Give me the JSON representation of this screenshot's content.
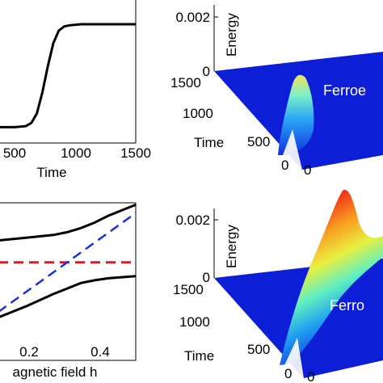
{
  "panels": {
    "top_left": {
      "xlabel": "Time",
      "xticks": [
        "500",
        "1000",
        "1500"
      ]
    },
    "top_right": {
      "zlabel": "Energy",
      "zticks": [
        "0.002",
        "0"
      ],
      "time_label": "Time",
      "time_ticks": [
        "1500",
        "1000",
        "500",
        "0"
      ],
      "side_tick": "0",
      "phase_label": "Ferroe"
    },
    "bottom_left": {
      "xlabel": "agnetic field   h",
      "xticks": [
        "0.2",
        "0.4"
      ]
    },
    "bottom_right": {
      "zlabel": "Energy",
      "zticks": [
        "0.002",
        "0"
      ],
      "time_label": "Time",
      "time_ticks": [
        "1500",
        "1000",
        "500",
        "0"
      ],
      "side_tick": "0",
      "phase_label": "Ferro"
    }
  },
  "colors": {
    "curve": "#000000",
    "red_dash": "#e8141b",
    "blue_dash": "#1a2fe0",
    "surface_base": "#0a1ed8",
    "surface_peak": "#cc1010"
  },
  "chart_data": [
    {
      "type": "line",
      "panel": "top_left",
      "xlabel": "Time",
      "ylabel": "",
      "xlim": [
        250,
        1500
      ],
      "ylim": [
        0,
        1
      ],
      "series": [
        {
          "x": [
            250,
            400,
            500,
            550,
            600,
            650,
            700,
            750,
            800,
            850,
            900,
            1000,
            1200,
            1500
          ],
          "y": [
            0.02,
            0.02,
            0.03,
            0.06,
            0.15,
            0.35,
            0.6,
            0.82,
            0.94,
            0.98,
            0.99,
            1.0,
            1.0,
            1.0
          ]
        }
      ]
    },
    {
      "type": "line",
      "panel": "bottom_left",
      "xlabel": "agnetic field   h",
      "ylabel": "",
      "xlim": [
        0.0,
        0.5
      ],
      "ylim": [
        0,
        1
      ],
      "series": [
        {
          "x": [
            0.0,
            0.1,
            0.2,
            0.25,
            0.3,
            0.35,
            0.4,
            0.5
          ],
          "y": [
            0.72,
            0.74,
            0.76,
            0.78,
            0.81,
            0.85,
            0.9,
            0.98
          ]
        },
        {
          "x": [
            0.0,
            0.1,
            0.2,
            0.25,
            0.3,
            0.35,
            0.4,
            0.5
          ],
          "y": [
            0.16,
            0.24,
            0.33,
            0.37,
            0.41,
            0.43,
            0.445,
            0.46
          ]
        },
        {
          "x": [
            0.0,
            0.5
          ],
          "y": [
            0.56,
            0.56
          ]
        },
        {
          "x": [
            0.0,
            0.5
          ],
          "y": [
            0.2,
            0.92
          ]
        }
      ]
    },
    {
      "type": "area",
      "panel": "top_right",
      "zlim": [
        0,
        0.002
      ],
      "peak_energy": 0.0011
    },
    {
      "type": "area",
      "panel": "bottom_right",
      "zlim": [
        0,
        0.002
      ],
      "peak_energy": 0.0022
    }
  ]
}
